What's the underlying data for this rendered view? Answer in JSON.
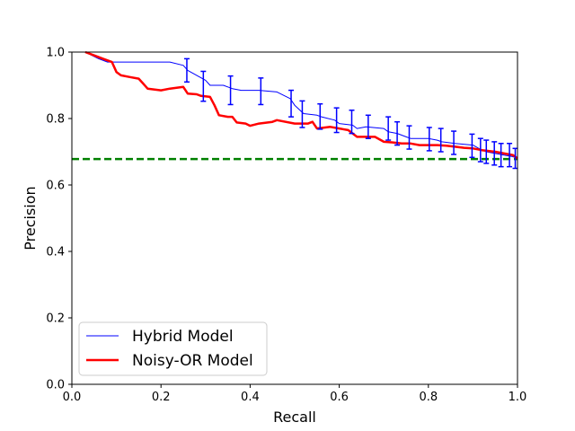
{
  "chart_data": {
    "type": "line",
    "xlabel": "Recall",
    "ylabel": "Precision",
    "xlim": [
      0,
      1
    ],
    "ylim": [
      0,
      1
    ],
    "xticks": [
      "0.0",
      "0.2",
      "0.4",
      "0.6",
      "0.8",
      "1.0"
    ],
    "yticks": [
      "0.0",
      "0.2",
      "0.4",
      "0.6",
      "0.8",
      "1.0"
    ],
    "grid": false,
    "legend_position": "lower-left",
    "baseline": {
      "y": 0.678,
      "color": "#008000",
      "style": "dashed"
    },
    "series": [
      {
        "name": "Hybrid Model",
        "color": "#0000ff",
        "x": [
          0.03,
          0.06,
          0.08,
          0.12,
          0.16,
          0.22,
          0.25,
          0.26,
          0.28,
          0.3,
          0.31,
          0.34,
          0.36,
          0.38,
          0.42,
          0.46,
          0.49,
          0.5,
          0.52,
          0.55,
          0.56,
          0.59,
          0.6,
          0.63,
          0.64,
          0.66,
          0.7,
          0.71,
          0.73,
          0.75,
          0.76,
          0.8,
          0.82,
          0.83,
          0.86,
          0.9,
          0.92,
          0.93,
          0.95,
          0.97,
          0.99,
          1.0
        ],
        "y": [
          1.0,
          0.98,
          0.97,
          0.97,
          0.97,
          0.97,
          0.96,
          0.945,
          0.93,
          0.915,
          0.9,
          0.9,
          0.89,
          0.885,
          0.885,
          0.88,
          0.86,
          0.84,
          0.815,
          0.81,
          0.805,
          0.795,
          0.785,
          0.78,
          0.77,
          0.775,
          0.77,
          0.76,
          0.755,
          0.745,
          0.74,
          0.74,
          0.735,
          0.73,
          0.725,
          0.72,
          0.705,
          0.7,
          0.695,
          0.69,
          0.685,
          0.68
        ],
        "error_bars": [
          {
            "x": 0.258,
            "y": 0.945,
            "err": 0.035
          },
          {
            "x": 0.295,
            "y": 0.897,
            "err": 0.045
          },
          {
            "x": 0.356,
            "y": 0.885,
            "err": 0.043
          },
          {
            "x": 0.424,
            "y": 0.882,
            "err": 0.04
          },
          {
            "x": 0.492,
            "y": 0.845,
            "err": 0.04
          },
          {
            "x": 0.517,
            "y": 0.813,
            "err": 0.04
          },
          {
            "x": 0.557,
            "y": 0.806,
            "err": 0.038
          },
          {
            "x": 0.594,
            "y": 0.795,
            "err": 0.037
          },
          {
            "x": 0.628,
            "y": 0.79,
            "err": 0.035
          },
          {
            "x": 0.665,
            "y": 0.775,
            "err": 0.035
          },
          {
            "x": 0.71,
            "y": 0.77,
            "err": 0.035
          },
          {
            "x": 0.73,
            "y": 0.755,
            "err": 0.035
          },
          {
            "x": 0.757,
            "y": 0.743,
            "err": 0.035
          },
          {
            "x": 0.802,
            "y": 0.738,
            "err": 0.035
          },
          {
            "x": 0.828,
            "y": 0.735,
            "err": 0.035
          },
          {
            "x": 0.857,
            "y": 0.727,
            "err": 0.035
          },
          {
            "x": 0.898,
            "y": 0.718,
            "err": 0.035
          },
          {
            "x": 0.917,
            "y": 0.705,
            "err": 0.035
          },
          {
            "x": 0.93,
            "y": 0.7,
            "err": 0.035
          },
          {
            "x": 0.948,
            "y": 0.695,
            "err": 0.035
          },
          {
            "x": 0.963,
            "y": 0.69,
            "err": 0.035
          },
          {
            "x": 0.982,
            "y": 0.69,
            "err": 0.035
          },
          {
            "x": 0.995,
            "y": 0.68,
            "err": 0.03
          }
        ]
      },
      {
        "name": "Noisy-OR Model",
        "color": "#ff0000",
        "x": [
          0.03,
          0.05,
          0.07,
          0.09,
          0.1,
          0.11,
          0.13,
          0.15,
          0.16,
          0.17,
          0.2,
          0.22,
          0.25,
          0.26,
          0.28,
          0.29,
          0.31,
          0.32,
          0.33,
          0.35,
          0.36,
          0.37,
          0.39,
          0.4,
          0.42,
          0.45,
          0.46,
          0.5,
          0.53,
          0.54,
          0.55,
          0.58,
          0.6,
          0.62,
          0.64,
          0.66,
          0.68,
          0.7,
          0.72,
          0.74,
          0.76,
          0.78,
          0.8,
          0.82,
          0.84,
          0.86,
          0.88,
          0.9,
          0.92,
          0.95,
          0.97,
          0.99,
          1.0
        ],
        "y": [
          1.0,
          0.99,
          0.98,
          0.97,
          0.94,
          0.93,
          0.925,
          0.92,
          0.905,
          0.89,
          0.885,
          0.89,
          0.895,
          0.875,
          0.873,
          0.868,
          0.865,
          0.84,
          0.81,
          0.805,
          0.805,
          0.788,
          0.785,
          0.778,
          0.785,
          0.79,
          0.795,
          0.785,
          0.785,
          0.79,
          0.77,
          0.775,
          0.77,
          0.765,
          0.745,
          0.745,
          0.745,
          0.73,
          0.728,
          0.725,
          0.725,
          0.72,
          0.72,
          0.72,
          0.718,
          0.715,
          0.712,
          0.71,
          0.705,
          0.7,
          0.695,
          0.69,
          0.68
        ]
      }
    ]
  }
}
